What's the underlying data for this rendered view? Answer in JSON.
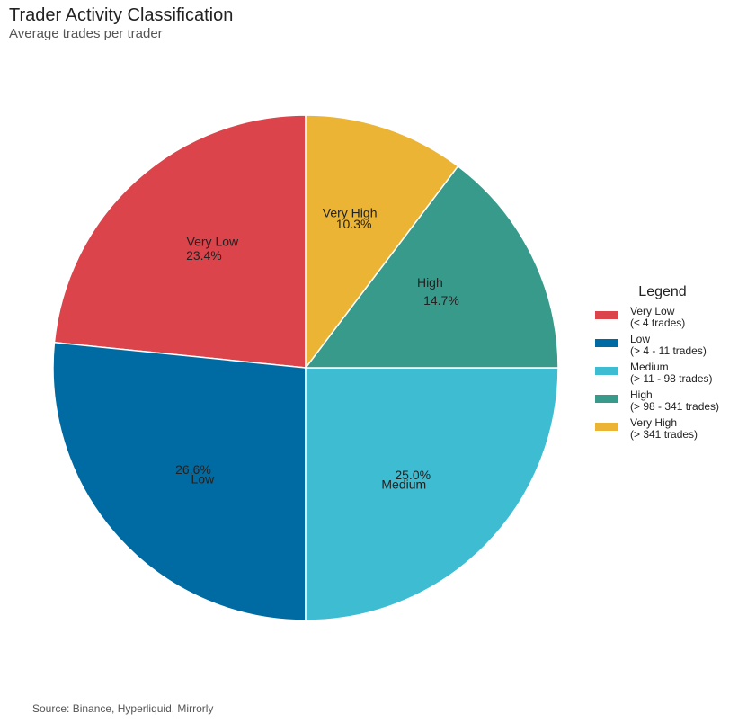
{
  "chart_data": {
    "type": "pie",
    "title": "Trader Activity Classification",
    "subtitle": "Average trades per trader",
    "source": "Source: Binance, Hyperliquid, Mirrorly",
    "legend_title": "Legend",
    "legend_position": "right",
    "slices": [
      {
        "label": "Very Low",
        "value": 23.4,
        "pct_label": "23.4%",
        "color": "#DB444B",
        "legend_line1": "Very Low",
        "legend_line2": "(≤ 4 trades)"
      },
      {
        "label": "Low",
        "value": 26.6,
        "pct_label": "26.6%",
        "color": "#006BA2",
        "legend_line1": "Low",
        "legend_line2": "(> 4 - 11 trades)"
      },
      {
        "label": "Medium",
        "value": 25.0,
        "pct_label": "25.0%",
        "color": "#3EBCD2",
        "legend_line1": "Medium",
        "legend_line2": "(> 11 - 98 trades)"
      },
      {
        "label": "High",
        "value": 14.7,
        "pct_label": "14.7%",
        "color": "#379A8B",
        "legend_line1": "High",
        "legend_line2": "(> 98 - 341 trades)"
      },
      {
        "label": "Very High",
        "value": 10.3,
        "pct_label": "10.3%",
        "color": "#EBB434",
        "legend_line1": "Very High",
        "legend_line2": "(> 341 trades)"
      }
    ]
  }
}
